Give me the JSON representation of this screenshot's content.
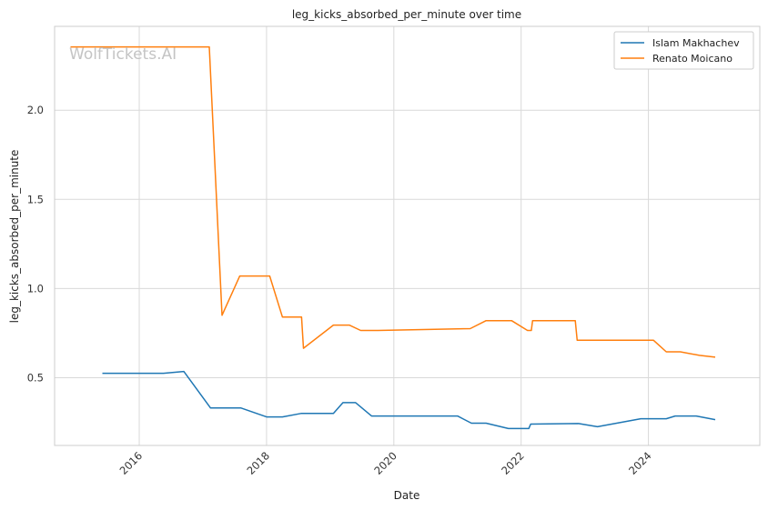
{
  "chart_data": {
    "type": "line",
    "title": "leg_kicks_absorbed_per_minute over time",
    "xlabel": "Date",
    "ylabel": "leg_kicks_absorbed_per_minute",
    "watermark": "WolfTickets.AI",
    "x_ticks": [
      "2016",
      "2018",
      "2020",
      "2022",
      "2024"
    ],
    "y_ticks": [
      "0.5",
      "1.0",
      "1.5",
      "2.0"
    ],
    "xlim": [
      2014.67,
      2025.75
    ],
    "ylim": [
      0.12,
      2.47
    ],
    "grid": true,
    "legend_position": "top-right",
    "series": [
      {
        "name": "Islam Makhachev",
        "color": "#1f77b4",
        "points": [
          [
            2015.42,
            0.525
          ],
          [
            2016.38,
            0.525
          ],
          [
            2016.7,
            0.535
          ],
          [
            2017.12,
            0.33
          ],
          [
            2017.6,
            0.33
          ],
          [
            2018.0,
            0.28
          ],
          [
            2018.25,
            0.28
          ],
          [
            2018.55,
            0.3
          ],
          [
            2019.05,
            0.3
          ],
          [
            2019.2,
            0.36
          ],
          [
            2019.4,
            0.36
          ],
          [
            2019.65,
            0.285
          ],
          [
            2021.0,
            0.285
          ],
          [
            2021.22,
            0.245
          ],
          [
            2021.45,
            0.245
          ],
          [
            2021.8,
            0.215
          ],
          [
            2022.12,
            0.215
          ],
          [
            2022.15,
            0.24
          ],
          [
            2022.9,
            0.243
          ],
          [
            2023.2,
            0.225
          ],
          [
            2023.88,
            0.27
          ],
          [
            2024.28,
            0.27
          ],
          [
            2024.42,
            0.285
          ],
          [
            2024.75,
            0.285
          ],
          [
            2025.05,
            0.265
          ]
        ]
      },
      {
        "name": "Renato Moicano",
        "color": "#ff7f0e",
        "points": [
          [
            2014.92,
            2.355
          ],
          [
            2017.1,
            2.355
          ],
          [
            2017.3,
            0.85
          ],
          [
            2017.58,
            1.07
          ],
          [
            2018.05,
            1.07
          ],
          [
            2018.25,
            0.84
          ],
          [
            2018.55,
            0.84
          ],
          [
            2018.58,
            0.665
          ],
          [
            2019.05,
            0.795
          ],
          [
            2019.3,
            0.795
          ],
          [
            2019.48,
            0.765
          ],
          [
            2019.75,
            0.765
          ],
          [
            2021.2,
            0.775
          ],
          [
            2021.45,
            0.82
          ],
          [
            2021.85,
            0.82
          ],
          [
            2022.1,
            0.765
          ],
          [
            2022.16,
            0.765
          ],
          [
            2022.18,
            0.82
          ],
          [
            2022.85,
            0.82
          ],
          [
            2022.88,
            0.71
          ],
          [
            2024.08,
            0.71
          ],
          [
            2024.28,
            0.645
          ],
          [
            2024.5,
            0.645
          ],
          [
            2024.8,
            0.625
          ],
          [
            2025.05,
            0.615
          ]
        ]
      }
    ]
  }
}
